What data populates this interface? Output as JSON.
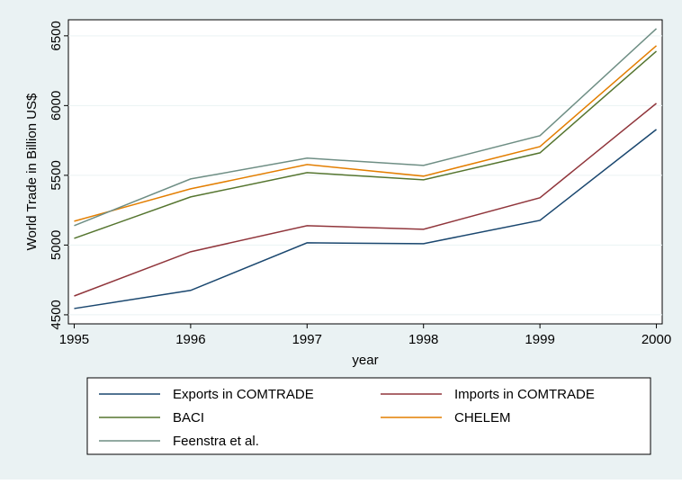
{
  "chart_data": {
    "type": "line",
    "x": [
      1995,
      1996,
      1997,
      1998,
      1999,
      2000
    ],
    "xlabel": "year",
    "ylabel": "World Trade in Billion US$",
    "xlim": [
      1994.95,
      2000.05
    ],
    "xticks": [
      1995,
      1996,
      1997,
      1998,
      1999,
      2000
    ],
    "ylim": [
      4435,
      6615
    ],
    "yticks": [
      4500,
      5000,
      5500,
      6000,
      6500
    ],
    "grid": true,
    "legend": "bottom",
    "series": [
      {
        "name": "Exports in COMTRADE",
        "color": "#1a476f",
        "values": [
          4545,
          4675,
          5016,
          5010,
          5177,
          5829
        ]
      },
      {
        "name": "Imports in COMTRADE",
        "color": "#90353b",
        "values": [
          4635,
          4952,
          5139,
          5113,
          5339,
          6016
        ]
      },
      {
        "name": "BACI",
        "color": "#55752f",
        "values": [
          5048,
          5345,
          5519,
          5468,
          5661,
          6390
        ]
      },
      {
        "name": "CHELEM",
        "color": "#e37e00",
        "values": [
          5171,
          5403,
          5577,
          5494,
          5706,
          6429
        ]
      },
      {
        "name": "Feenstra et al.",
        "color": "#6e8e84",
        "values": [
          5139,
          5474,
          5623,
          5571,
          5784,
          6552
        ]
      }
    ]
  }
}
